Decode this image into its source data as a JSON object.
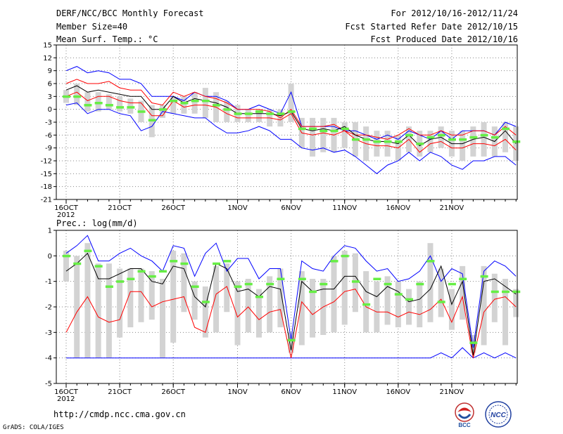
{
  "header": {
    "title": "DERF/NCC/BCC Monthly Forecast",
    "member": "Member Size=40",
    "variable": "Mean Surf. Temp.: °C",
    "period": "For 2012/10/16-2012/11/24",
    "started": "Fcst Started Refer Date 2012/10/15",
    "produced": "Fcst Produced Date 2012/10/16"
  },
  "footer": {
    "url": "http://cmdp.ncc.cma.gov.cn",
    "grads": "GrADS: COLA/IGES",
    "logo_bcc": "BCC",
    "logo_ncc": "NCC"
  },
  "colors": {
    "max": "#0000ff",
    "spread": "#ff0000",
    "mean": "#000000",
    "box": "#d3d3d3",
    "median": "#66ee44"
  },
  "chart_data": [
    {
      "type": "line",
      "title": "Mean Surf. Temp.: °C",
      "ylim": [
        -21,
        15
      ],
      "yticks": [
        15,
        12,
        9,
        6,
        3,
        0,
        -3,
        -6,
        -9,
        -12,
        -15,
        -18,
        -21
      ],
      "xticks": [
        {
          "i": 0,
          "label": "16OCT"
        },
        {
          "i": 5,
          "label": "21OCT"
        },
        {
          "i": 10,
          "label": "26OCT"
        },
        {
          "i": 16,
          "label": "1NOV"
        },
        {
          "i": 21,
          "label": "6NOV"
        },
        {
          "i": 26,
          "label": "11NOV"
        },
        {
          "i": 31,
          "label": "16NOV"
        },
        {
          "i": 36,
          "label": "21NOV"
        }
      ],
      "xyear": "2012",
      "series": [
        {
          "name": "max",
          "values": [
            9,
            10,
            8.5,
            9,
            8.5,
            7,
            7,
            6,
            3,
            3,
            3,
            2,
            4,
            3,
            3,
            2,
            0,
            0,
            1,
            0,
            -1,
            4,
            -4,
            -4,
            -4,
            -4,
            -5,
            -5,
            -6,
            -7,
            -6,
            -7,
            -5,
            -6,
            -7,
            -5,
            -7,
            -5,
            -5,
            -5,
            -6,
            -3,
            -4
          ]
        },
        {
          "name": "upper",
          "values": [
            6,
            7,
            6,
            6,
            6.5,
            5,
            4.5,
            4.5,
            1.5,
            1,
            4,
            3,
            4,
            3,
            2.5,
            1.5,
            0,
            0,
            0,
            -0.5,
            -2,
            0,
            -4,
            -4,
            -4,
            -3.5,
            -5,
            -6,
            -6,
            -6.5,
            -7,
            -6,
            -4.5,
            -6,
            -6,
            -5,
            -6,
            -6,
            -5,
            -5,
            -6,
            -4,
            -6
          ]
        },
        {
          "name": "mean",
          "values": [
            4.5,
            5.5,
            4,
            4.5,
            4,
            3.5,
            3,
            3,
            0,
            0,
            3,
            1.5,
            2.5,
            2,
            1.5,
            0.5,
            -1,
            -1,
            -1,
            -1,
            -1.5,
            -0.5,
            -4.5,
            -5,
            -4.5,
            -5,
            -4,
            -6,
            -7,
            -7.5,
            -7.5,
            -8,
            -6,
            -8.5,
            -7,
            -6.5,
            -8,
            -8,
            -7,
            -6.5,
            -7.5,
            -5,
            -8
          ]
        },
        {
          "name": "lower",
          "values": [
            3,
            4,
            2,
            3,
            3,
            2,
            1.5,
            1.5,
            -1.5,
            -1.5,
            2,
            0.5,
            1,
            1,
            0.5,
            -1,
            -2,
            -2,
            -2,
            -2,
            -2.5,
            -1,
            -5.5,
            -6,
            -5.5,
            -6,
            -5,
            -7,
            -8,
            -8.5,
            -8.5,
            -9,
            -7,
            -10,
            -8,
            -7.5,
            -9,
            -9,
            -8,
            -8,
            -8.5,
            -7,
            -9.5
          ]
        },
        {
          "name": "min",
          "values": [
            1,
            1.5,
            -1,
            0,
            0,
            -1,
            -1.5,
            -5,
            -4,
            -0.5,
            -1,
            -1.5,
            -2,
            -2,
            -4,
            -5.5,
            -5.5,
            -5,
            -4,
            -5,
            -7,
            -7,
            -9,
            -9.5,
            -9,
            -10,
            -9.5,
            -11,
            -13,
            -15,
            -13,
            -12,
            -10,
            -12,
            -10,
            -11,
            -13,
            -14,
            -12,
            -12,
            -11,
            -11,
            -13
          ]
        },
        {
          "name": "median",
          "values": [
            3,
            3,
            1,
            1.5,
            1,
            0.5,
            0.5,
            -0.5,
            -2.5,
            0,
            2,
            1.5,
            2,
            2,
            1,
            0,
            -1,
            -1,
            -0.5,
            -1,
            -1,
            -0.5,
            -4.5,
            -4.5,
            -5,
            -5,
            -4.5,
            -7,
            -7,
            -7.5,
            -7.5,
            -7.5,
            -6,
            -8,
            -6.5,
            -6,
            -7,
            -7,
            -6.5,
            -6,
            -6.5,
            -4.5,
            -7.5
          ]
        },
        {
          "name": "box_high",
          "values": [
            4.5,
            6,
            4,
            4,
            3.5,
            3,
            2.5,
            2,
            1,
            1,
            3,
            3,
            4,
            5,
            4,
            2,
            1,
            0,
            0,
            0,
            0,
            6,
            -2,
            -2,
            -2,
            -2,
            -3,
            -3,
            -4,
            -5,
            -5,
            -6,
            -4,
            -5,
            -5,
            -4,
            -5,
            -5,
            -4,
            -3,
            -4,
            -3,
            -4
          ]
        },
        {
          "name": "box_low",
          "values": [
            1.5,
            1,
            -0.5,
            -0.5,
            0,
            -0.5,
            -1,
            -3,
            -6.5,
            -2,
            -1,
            -1,
            -1,
            -2,
            -3,
            -3,
            -3,
            -3,
            -3,
            -4,
            -4,
            -3,
            -9,
            -11,
            -10,
            -10,
            -9,
            -11,
            -12,
            -11,
            -11,
            -12,
            -10,
            -11,
            -10,
            -9,
            -11,
            -12,
            -11,
            -11,
            -11,
            -10,
            -12
          ]
        }
      ]
    },
    {
      "type": "line",
      "title": "Prec.: log(mm/d)",
      "ylim": [
        -5,
        1
      ],
      "yticks": [
        1,
        0,
        -1,
        -2,
        -3,
        -4,
        -5
      ],
      "xticks": [
        {
          "i": 0,
          "label": "16OCT"
        },
        {
          "i": 5,
          "label": "21OCT"
        },
        {
          "i": 10,
          "label": "26OCT"
        },
        {
          "i": 16,
          "label": "1NOV"
        },
        {
          "i": 21,
          "label": "6NOV"
        },
        {
          "i": 26,
          "label": "11NOV"
        },
        {
          "i": 31,
          "label": "16NOV"
        },
        {
          "i": 36,
          "label": "21NOV"
        }
      ],
      "xyear": "2012",
      "series": [
        {
          "name": "max",
          "values": [
            0.1,
            0.4,
            0.8,
            -0.2,
            -0.2,
            0.1,
            0.3,
            0,
            -0.2,
            -0.6,
            0.4,
            0.3,
            -0.8,
            0.1,
            0.5,
            -0.6,
            -0.1,
            -0.1,
            -0.9,
            -0.5,
            -0.5,
            -3.3,
            -0.2,
            -0.5,
            -0.6,
            0,
            0.4,
            0.3,
            -0.2,
            -0.6,
            -0.5,
            -1,
            -0.9,
            -0.6,
            0,
            -1,
            -0.5,
            -0.7,
            -3.6,
            -0.6,
            -0.2,
            -0.4,
            -0.8
          ]
        },
        {
          "name": "mean",
          "values": [
            -0.6,
            -0.3,
            0.1,
            -0.9,
            -0.9,
            -0.7,
            -0.5,
            -0.5,
            -1,
            -1.1,
            -0.4,
            -0.5,
            -1.6,
            -2,
            -0.3,
            -0.5,
            -1.4,
            -1.3,
            -1.6,
            -1.2,
            -1.3,
            -3.7,
            -1,
            -1.4,
            -1.3,
            -1.3,
            -0.8,
            -0.8,
            -1.4,
            -1.6,
            -1.2,
            -1.4,
            -1.8,
            -1.7,
            -1.3,
            -0.4,
            -1.9,
            -1,
            -3.9,
            -1,
            -0.9,
            -1.2,
            -1.5
          ]
        },
        {
          "name": "spread",
          "values": [
            -3,
            -2.2,
            -1.6,
            -2.4,
            -2.6,
            -2.5,
            -1.4,
            -1.4,
            -2,
            -1.8,
            -1.7,
            -1.6,
            -2.8,
            -3,
            -1.5,
            -1.2,
            -2.4,
            -2,
            -2.5,
            -2.2,
            -2.1,
            -4,
            -1.8,
            -2.3,
            -2,
            -1.8,
            -1.4,
            -1.3,
            -2,
            -2.2,
            -2.2,
            -2.4,
            -2.2,
            -2.3,
            -2.1,
            -1.7,
            -2.6,
            -1.6,
            -4,
            -2.2,
            -1.7,
            -1.6,
            -2
          ]
        },
        {
          "name": "min",
          "values": [
            -4,
            -4,
            -4,
            -4,
            -4,
            -4,
            -4,
            -4,
            -4,
            -4,
            -4,
            -4,
            -4,
            -4,
            -4,
            -4,
            -4,
            -4,
            -4,
            -4,
            -4,
            -4,
            -4,
            -4,
            -4,
            -4,
            -4,
            -4,
            -4,
            -4,
            -4,
            -4,
            -4,
            -4,
            -4,
            -3.8,
            -4,
            -3.6,
            -4,
            -3.8,
            -4,
            -3.8,
            -4
          ]
        },
        {
          "name": "median",
          "values": [
            0,
            -0.3,
            0.2,
            -0.4,
            -1.2,
            -1,
            -0.9,
            -0.6,
            -0.8,
            -0.6,
            -0.2,
            -0.3,
            -1.2,
            -1.8,
            -0.3,
            -0.2,
            -1.2,
            -1.1,
            -1.6,
            -1.1,
            -0.9,
            -3.3,
            -0.9,
            -1.4,
            -1.1,
            -0.2,
            0,
            -1,
            -1.9,
            -0.9,
            -1.1,
            -1.5,
            -1.7,
            -1.1,
            -0.2,
            -1.8,
            -1.1,
            -0.9,
            -3.4,
            -0.8,
            -1.4,
            -1.4,
            -1.4
          ]
        },
        {
          "name": "box_high",
          "values": [
            0.2,
            0,
            0.5,
            -0.3,
            -0.3,
            -0.5,
            -0.5,
            -0.5,
            -0.6,
            -0.9,
            0.2,
            0.1,
            -1,
            -1.2,
            -0.4,
            -0.3,
            -1,
            -0.9,
            -1.3,
            -0.8,
            -0.5,
            -3,
            -0.6,
            -0.9,
            -0.9,
            0,
            0.2,
            0.1,
            -0.6,
            -1,
            -0.8,
            -1,
            -1.3,
            -1,
            0.5,
            -0.5,
            -1.3,
            -0.4,
            -3.1,
            -0.4,
            -0.7,
            -0.9,
            -1.3
          ]
        },
        {
          "name": "box_low",
          "values": [
            -1,
            -4,
            -4,
            -4,
            -4,
            -3.2,
            -2.8,
            -2.6,
            -2.5,
            -4,
            -3.4,
            -2.2,
            -2.5,
            -3.2,
            -3,
            -2.2,
            -3.5,
            -3,
            -3.2,
            -3,
            -2.8,
            -3.8,
            -3.5,
            -3.2,
            -3.1,
            -3,
            -2.7,
            -2.2,
            -3,
            -3,
            -2.7,
            -2.8,
            -2.7,
            -2.8,
            -2.6,
            -2.4,
            -2.9,
            -2.5,
            -3.8,
            -3.5,
            -2.6,
            -3.5,
            -2.4
          ]
        }
      ]
    }
  ]
}
